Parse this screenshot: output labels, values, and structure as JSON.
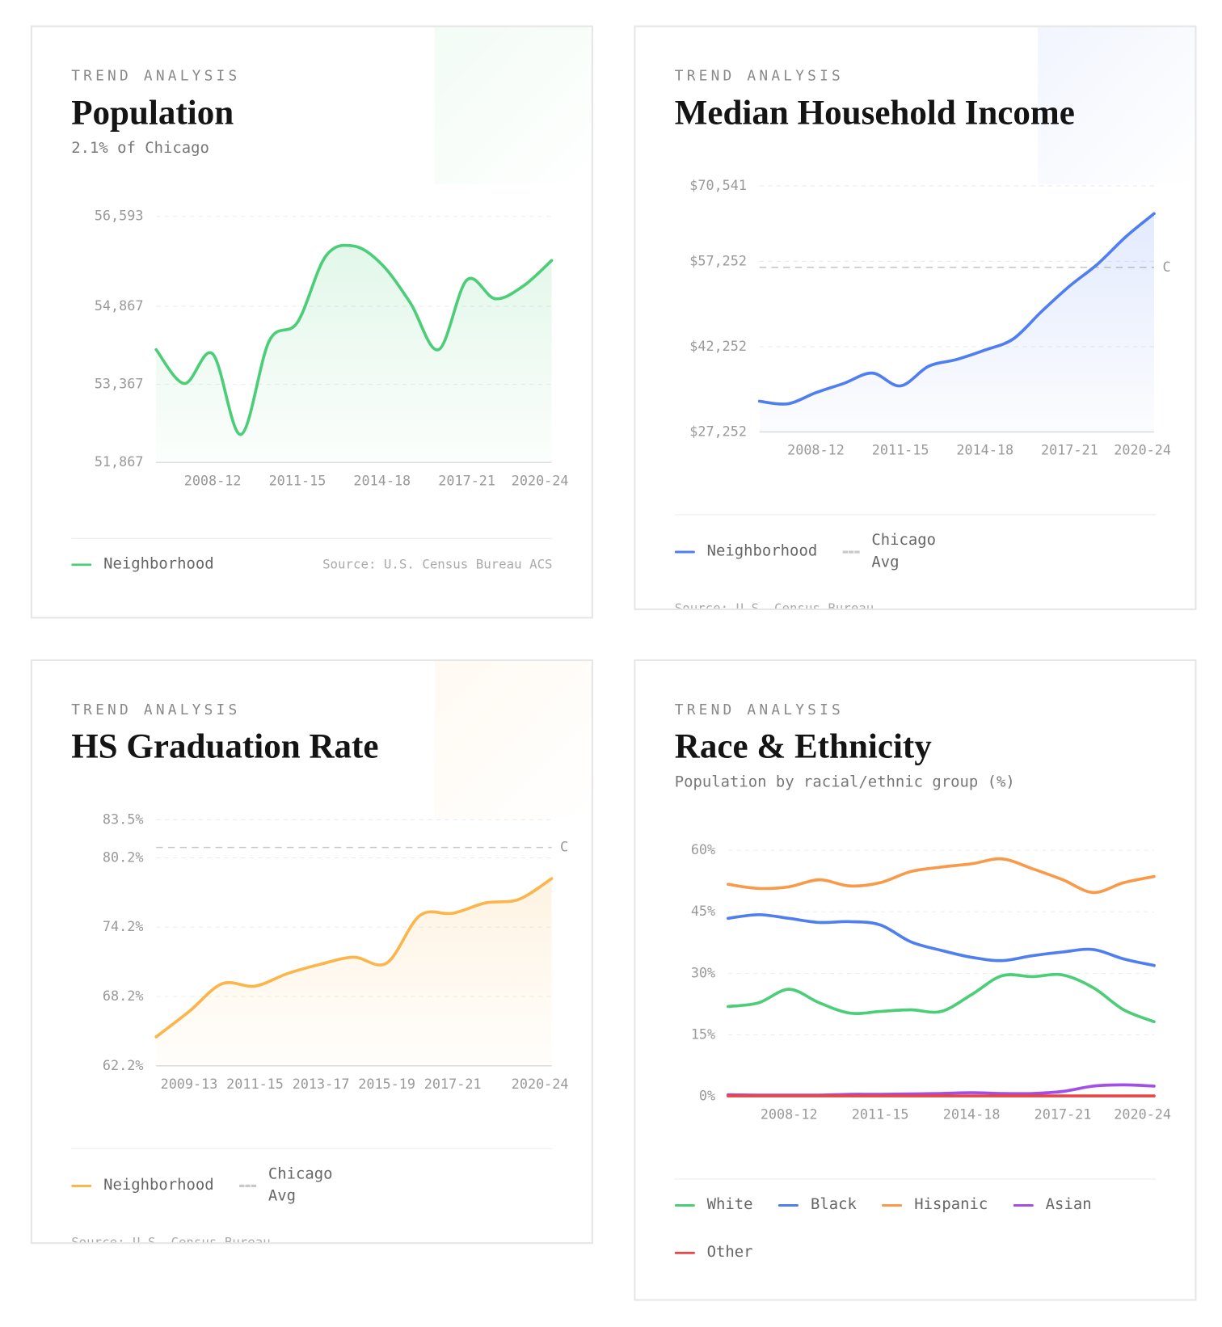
{
  "chart_data": [
    {
      "type": "line",
      "eyebrow": "TREND ANALYSIS",
      "title": "Population",
      "subtitle": "2.1% of Chicago",
      "categories": [
        null,
        null,
        "2008-12",
        null,
        null,
        "2011-15",
        null,
        null,
        "2014-18",
        null,
        null,
        "2017-21",
        null,
        null,
        "2020-24"
      ],
      "series": [
        {
          "name": "Neighborhood",
          "color": "#4ccd78",
          "values": [
            54034,
            53383,
            53953,
            52405,
            54197,
            54556,
            55827,
            56023,
            55664,
            54931,
            54034,
            55371,
            55012,
            55257,
            55746
          ]
        }
      ],
      "ylim": [
        51867,
        56593
      ],
      "yticks": [
        {
          "value": 51867,
          "label": "51,867"
        },
        {
          "value": 53367,
          "label": "53,367"
        },
        {
          "value": 54867,
          "label": "54,867"
        },
        {
          "value": 56593,
          "label": "56,593"
        }
      ],
      "grid": true,
      "area": true,
      "source": "Source: U.S. Census Bureau ACS"
    },
    {
      "type": "line",
      "eyebrow": "TREND ANALYSIS",
      "title": "Median Household Income",
      "categories": [
        null,
        null,
        "2008-12",
        null,
        null,
        "2011-15",
        null,
        null,
        "2014-18",
        null,
        null,
        "2017-21",
        null,
        null,
        "2020-24"
      ],
      "series": [
        {
          "name": "Neighborhood",
          "color": "#4f7ef0",
          "values": [
            32652,
            32202,
            34152,
            35802,
            37602,
            35352,
            38802,
            40002,
            41652,
            43602,
            48402,
            52902,
            56802,
            61602,
            65652
          ]
        }
      ],
      "ylim": [
        27252,
        70541
      ],
      "yticks": [
        {
          "value": 27252,
          "label": "$27,252"
        },
        {
          "value": 42252,
          "label": "$42,252"
        },
        {
          "value": 57252,
          "label": "$57,252"
        },
        {
          "value": 70541,
          "label": "$70,541"
        }
      ],
      "reference": {
        "name": "Chicago Avg",
        "value": 56202,
        "label": "C",
        "color": "#c8c8c8"
      },
      "grid": true,
      "area": true,
      "source": "Source: U.S. Census Bureau ACS"
    },
    {
      "type": "line",
      "eyebrow": "TREND ANALYSIS",
      "title": "HS Graduation Rate",
      "categories": [
        null,
        "2009-13",
        null,
        "2011-15",
        null,
        "2013-17",
        null,
        "2015-19",
        null,
        "2017-21",
        null,
        null,
        "2020-24"
      ],
      "series": [
        {
          "name": "Neighborhood",
          "color": "#fbb54a",
          "values": [
            64.7,
            66.9,
            69.3,
            69.1,
            70.2,
            71.0,
            71.6,
            71.1,
            75.2,
            75.4,
            76.3,
            76.6,
            78.4
          ]
        }
      ],
      "ylim": [
        62.2,
        83.5
      ],
      "yticks": [
        {
          "value": 62.2,
          "label": "62.2%"
        },
        {
          "value": 68.2,
          "label": "68.2%"
        },
        {
          "value": 74.2,
          "label": "74.2%"
        },
        {
          "value": 80.2,
          "label": "80.2%"
        },
        {
          "value": 83.5,
          "label": "83.5%"
        }
      ],
      "reference": {
        "name": "Chicago Avg",
        "value": 81.1,
        "label": "C",
        "color": "#c8c8c8"
      },
      "grid": true,
      "area": true,
      "source": "Source: U.S. Census Bureau ACS"
    },
    {
      "type": "line",
      "eyebrow": "TREND ANALYSIS",
      "title": "Race & Ethnicity",
      "subtitle": "Population by racial/ethnic group (%)",
      "categories": [
        null,
        null,
        "2008-12",
        null,
        null,
        "2011-15",
        null,
        null,
        "2014-18",
        null,
        null,
        "2017-21",
        null,
        null,
        "2020-24"
      ],
      "series": [
        {
          "name": "White",
          "color": "#4ccd78",
          "values": [
            21.9,
            22.8,
            26.1,
            22.8,
            20.3,
            20.7,
            21.1,
            20.7,
            24.8,
            29.4,
            29.2,
            29.6,
            26.5,
            21.1,
            18.2
          ]
        },
        {
          "name": "Black",
          "color": "#4f7ef0",
          "values": [
            43.4,
            44.3,
            43.4,
            42.4,
            42.6,
            41.8,
            37.7,
            35.6,
            33.9,
            33.1,
            34.3,
            35.2,
            35.8,
            33.5,
            31.9
          ]
        },
        {
          "name": "Hispanic",
          "color": "#f99a4a",
          "values": [
            51.7,
            50.7,
            51.1,
            52.8,
            51.3,
            52.1,
            54.8,
            55.9,
            56.7,
            57.9,
            55.5,
            52.8,
            49.7,
            52.1,
            53.6
          ]
        },
        {
          "name": "Asian",
          "color": "#a24ee8",
          "values": [
            0.4,
            0.3,
            0.3,
            0.3,
            0.5,
            0.5,
            0.6,
            0.7,
            0.9,
            0.7,
            0.7,
            1.2,
            2.5,
            2.8,
            2.5
          ]
        },
        {
          "name": "Other",
          "color": "#e84545",
          "values": [
            0.1,
            0.1,
            0.1,
            0.1,
            0.1,
            0.1,
            0.1,
            0.1,
            0.1,
            0.1,
            0.1,
            0.1,
            0.1,
            0.1,
            0.1
          ]
        }
      ],
      "ylim": [
        0,
        60
      ],
      "yticks": [
        {
          "value": 0,
          "label": "0%"
        },
        {
          "value": 15,
          "label": "15%"
        },
        {
          "value": 30,
          "label": "30%"
        },
        {
          "value": 45,
          "label": "45%"
        },
        {
          "value": 60,
          "label": "60%"
        }
      ],
      "grid": true,
      "area": false
    }
  ]
}
